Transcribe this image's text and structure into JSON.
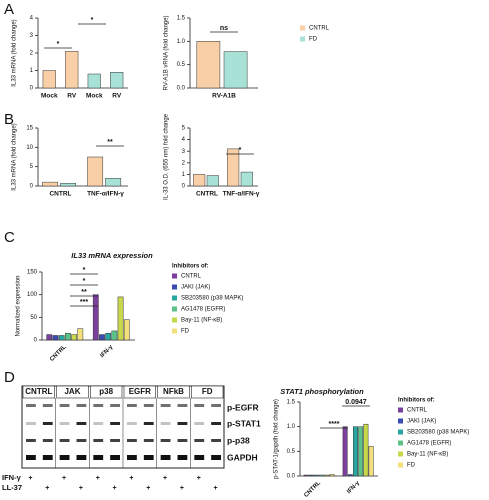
{
  "chart_data": [
    {
      "type": "bar",
      "label": "A",
      "y_label": "IL33 mRNA (fold change)",
      "categories": [
        "Mock",
        "RV",
        "Mock",
        "RV"
      ],
      "values": [
        1.0,
        2.1,
        0.8,
        0.9
      ],
      "colors": [
        "#f8cfa6",
        "#f8cfa6",
        "#a8e2d6",
        "#a8e2d6"
      ],
      "ylim": [
        0,
        4
      ],
      "yticks": [
        0,
        1,
        2,
        3,
        4
      ],
      "annotations": [
        "*",
        "*"
      ]
    },
    {
      "type": "bar",
      "y_label": "RV-A1B vRNA (fold change)",
      "categories": [
        "RV-A1B"
      ],
      "series": [
        {
          "name": "CNTRL",
          "color": "#f8cfa6",
          "values": [
            1.0
          ]
        },
        {
          "name": "FD",
          "color": "#a8e2d6",
          "values": [
            0.78
          ]
        }
      ],
      "ylim": [
        0,
        1.5
      ],
      "yticks": [
        {
          "value": 0,
          "label": "0.0"
        },
        0.5,
        {
          "value": 1,
          "label": "1.0"
        },
        1.5
      ],
      "legend": true,
      "annotations": [
        "ns"
      ]
    },
    {
      "type": "bar",
      "label": "B",
      "y_label": "IL33 mRNA (fold change)",
      "categories": [
        "CNTRL",
        "TNF-α/IFN-γ"
      ],
      "series": [
        {
          "color": "#f8cfa6",
          "values": [
            1.0,
            7.5
          ]
        },
        {
          "color": "#a8e2d6",
          "values": [
            0.7,
            2.0
          ]
        }
      ],
      "ylim": [
        0,
        15
      ],
      "yticks": [
        0,
        5,
        10,
        15
      ],
      "annotations": [
        "**"
      ]
    },
    {
      "type": "bar",
      "y_label": "IL-33 O.D. (655 nm) fold change",
      "categories": [
        "CNTRL",
        "TNF-α/IFN-γ"
      ],
      "series": [
        {
          "color": "#f8cfa6",
          "values": [
            1.0,
            3.2
          ]
        },
        {
          "color": "#a8e2d6",
          "values": [
            0.9,
            1.2
          ]
        }
      ],
      "ylim": [
        0,
        5
      ],
      "yticks": [
        0,
        1,
        2,
        3,
        4,
        5
      ],
      "annotations": [
        "*"
      ]
    },
    {
      "type": "bar",
      "label": "C",
      "title": "IL33 mRNA expression",
      "y_label": "Normalized expression",
      "categories": [
        "CNTRL",
        "IFN-γ"
      ],
      "series": [
        {
          "name": "CNTRL",
          "color": "#7b3f9c",
          "values": [
            12,
            100
          ]
        },
        {
          "name": "JAKI (JAK)",
          "color": "#3c4bb0",
          "values": [
            10,
            12
          ]
        },
        {
          "name": "SB203580 (p38 MAPK)",
          "color": "#2aa6a0",
          "values": [
            10,
            15
          ]
        },
        {
          "name": "AG1478 (EGFR)",
          "color": "#5dc28a",
          "values": [
            15,
            20
          ]
        },
        {
          "name": "Bay-11 (NF-κB)",
          "color": "#c8d84a",
          "values": [
            12,
            95
          ]
        },
        {
          "name": "FD",
          "color": "#f3e07a",
          "values": [
            25,
            45
          ]
        }
      ],
      "ylim": [
        0,
        150
      ],
      "yticks": [
        0,
        50,
        100,
        150
      ],
      "legend": true,
      "legend_title": "Inhibitors of:",
      "annotations": [
        "***",
        "**",
        "*",
        "*"
      ]
    },
    {
      "type": "bar",
      "label": "D",
      "title": "STAT1 phosphorylation",
      "y_label": "p-STAT-1/gapdh (fold change)",
      "categories": [
        "CNTRL",
        "IFN-γ"
      ],
      "series": [
        {
          "name": "CNTRL",
          "color": "#7b3f9c",
          "values": [
            0.02,
            1.0
          ]
        },
        {
          "name": "JAKI (JAK)",
          "color": "#3c4bb0",
          "values": [
            0.02,
            0.03
          ]
        },
        {
          "name": "SB203580 (p38 MAPK)",
          "color": "#2aa6a0",
          "values": [
            0.02,
            1.0
          ]
        },
        {
          "name": "AG1478 (EGFR)",
          "color": "#5dc28a",
          "values": [
            0.02,
            1.0
          ]
        },
        {
          "name": "Bay-11 (NF-κB)",
          "color": "#c8d84a",
          "values": [
            0.02,
            1.05
          ]
        },
        {
          "name": "FD",
          "color": "#f3e07a",
          "values": [
            0.03,
            0.6
          ]
        }
      ],
      "ylim": [
        0,
        1.5
      ],
      "yticks": [
        {
          "value": 0,
          "label": "0.0"
        },
        0.5,
        {
          "value": 1,
          "label": "1.0"
        },
        1.5
      ],
      "legend": true,
      "legend_title": "Inhibitors of:",
      "annotations": [
        "****",
        "0.0947"
      ]
    }
  ],
  "blot": {
    "lanes": [
      "CNTRL",
      "JAK",
      "p38",
      "EGFR",
      "NFkB",
      "FD"
    ],
    "bands": [
      "p-EGFR",
      "p-STAT1",
      "p-p38",
      "GAPDH"
    ],
    "treatments": [
      {
        "label": "IFN-γ",
        "marks": [
          "+",
          "+",
          "+",
          "+",
          "+",
          "+"
        ]
      },
      {
        "label": "LL-37",
        "marks": [
          "+",
          "+",
          "+",
          "+",
          "+",
          "+"
        ]
      }
    ]
  }
}
